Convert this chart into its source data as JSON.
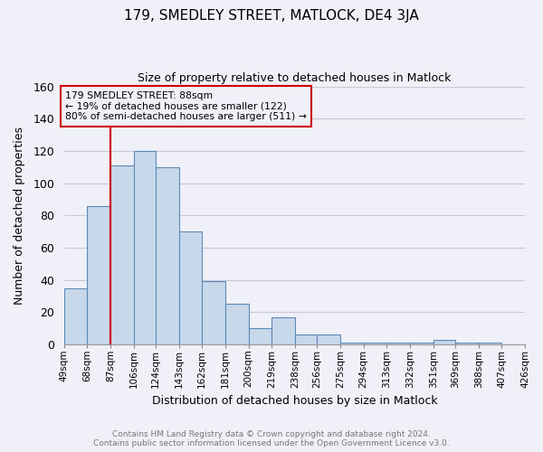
{
  "title": "179, SMEDLEY STREET, MATLOCK, DE4 3JA",
  "subtitle": "Size of property relative to detached houses in Matlock",
  "xlabel": "Distribution of detached houses by size in Matlock",
  "ylabel": "Number of detached properties",
  "bins": [
    49,
    68,
    87,
    106,
    124,
    143,
    162,
    181,
    200,
    219,
    238,
    256,
    275,
    294,
    313,
    332,
    351,
    369,
    388,
    407,
    426
  ],
  "bin_labels": [
    "49sqm",
    "68sqm",
    "87sqm",
    "106sqm",
    "124sqm",
    "143sqm",
    "162sqm",
    "181sqm",
    "200sqm",
    "219sqm",
    "238sqm",
    "256sqm",
    "275sqm",
    "294sqm",
    "313sqm",
    "332sqm",
    "351sqm",
    "369sqm",
    "388sqm",
    "407sqm",
    "426sqm"
  ],
  "counts": [
    35,
    86,
    111,
    120,
    110,
    70,
    39,
    25,
    10,
    17,
    6,
    6,
    1,
    1,
    1,
    1,
    3,
    1,
    1,
    0,
    0
  ],
  "bar_color": "#c8d8eb",
  "bar_edge_color": "#5b8ab5",
  "property_line_x": 87,
  "property_line_color": "#cc0000",
  "annotation_text": "179 SMEDLEY STREET: 88sqm\n← 19% of detached houses are smaller (122)\n80% of semi-detached houses are larger (511) →",
  "annotation_box_edge_color": "#cc0000",
  "ylim": [
    0,
    160
  ],
  "yticks": [
    0,
    20,
    40,
    60,
    80,
    100,
    120,
    140,
    160
  ],
  "grid_color": "#c8c8d8",
  "footer_line1": "Contains HM Land Registry data © Crown copyright and database right 2024.",
  "footer_line2": "Contains public sector information licensed under the Open Government Licence v3.0.",
  "bg_color": "#f0f0f8"
}
